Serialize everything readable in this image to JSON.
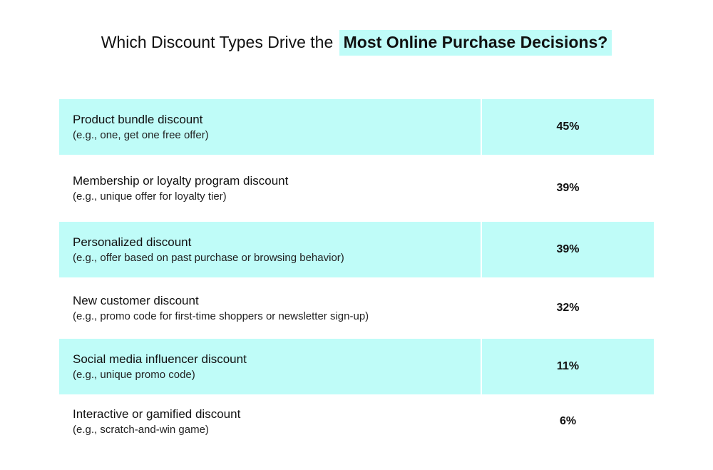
{
  "title": {
    "plain": "Which Discount Types Drive the",
    "highlight": "Most Online Purchase Decisions?"
  },
  "colors": {
    "highlight": "#bffcf8",
    "row_tint": "#bffcf8",
    "row_plain": "#ffffff",
    "text": "#111111"
  },
  "chart_data": {
    "type": "table",
    "title": "Which Discount Types Drive the Most Online Purchase Decisions?",
    "rows": [
      {
        "label": "Product bundle discount",
        "example": "(e.g., one, get one free offer)",
        "value": 45,
        "value_label": "45%"
      },
      {
        "label": "Membership or loyalty program discount",
        "example": "(e.g., unique offer for loyalty tier)",
        "value": 39,
        "value_label": "39%"
      },
      {
        "label": "Personalized discount",
        "example": "(e.g., offer based on past purchase or browsing behavior)",
        "value": 39,
        "value_label": "39%"
      },
      {
        "label": "New customer discount",
        "example": "(e.g., promo code for first-time shoppers or newsletter sign-up)",
        "value": 32,
        "value_label": "32%"
      },
      {
        "label": "Social media influencer discount",
        "example": "(e.g., unique promo code)",
        "value": 11,
        "value_label": "11%"
      },
      {
        "label": "Interactive or gamified discount",
        "example": "(e.g., scratch-and-win game)",
        "value": 6,
        "value_label": "6%"
      }
    ]
  }
}
